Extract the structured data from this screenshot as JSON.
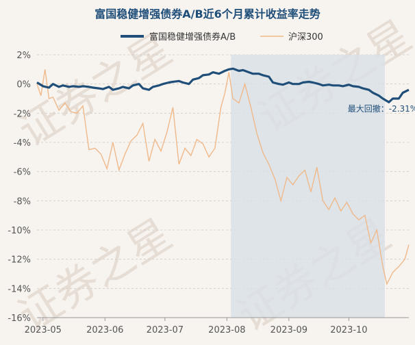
{
  "chart_data": {
    "type": "line",
    "title": "富国稳健增强债券A/B近6个月累计收益率走势",
    "legend": {
      "placement": "top",
      "entries": [
        "富国稳健增强债券A/B",
        "沪深300"
      ]
    },
    "x_ticks": [
      "2023-05",
      "2023-06",
      "2023-07",
      "2023-08",
      "2023-09",
      "2023-10"
    ],
    "y_ticks": [
      "2%",
      "0%",
      "-2%",
      "-4%",
      "-6%",
      "-8%",
      "-10%",
      "-12%",
      "-14%",
      "-16%"
    ],
    "ylim": [
      -16,
      2
    ],
    "xlim": [
      "2023-04-28",
      "2023-10-31"
    ],
    "grid": "horizontal dashed",
    "drawdown": {
      "start": "2023-08-03",
      "end": "2023-10-19",
      "label": "最大回撤：-2.31%"
    },
    "watermark": "证券之星",
    "colors": {
      "fund": "#1f4e79",
      "index": "#f0b98a",
      "shade": "#d9e0e6",
      "title": "#1f4e79"
    },
    "series": [
      {
        "name": "富国稳健增强债券A/B",
        "x": [
          "2023-04-28",
          "2023-05-01",
          "2023-05-04",
          "2023-05-06",
          "2023-05-09",
          "2023-05-11",
          "2023-05-14",
          "2023-05-16",
          "2023-05-19",
          "2023-05-21",
          "2023-05-24",
          "2023-05-26",
          "2023-05-29",
          "2023-05-31",
          "2023-06-03",
          "2023-06-05",
          "2023-06-08",
          "2023-06-10",
          "2023-06-13",
          "2023-06-15",
          "2023-06-18",
          "2023-06-20",
          "2023-06-23",
          "2023-06-25",
          "2023-06-28",
          "2023-06-30",
          "2023-07-03",
          "2023-07-05",
          "2023-07-08",
          "2023-07-10",
          "2023-07-13",
          "2023-07-15",
          "2023-07-18",
          "2023-07-20",
          "2023-07-23",
          "2023-07-25",
          "2023-07-28",
          "2023-07-31",
          "2023-08-02",
          "2023-08-04",
          "2023-08-07",
          "2023-08-09",
          "2023-08-12",
          "2023-08-14",
          "2023-08-17",
          "2023-08-19",
          "2023-08-22",
          "2023-08-24",
          "2023-08-27",
          "2023-08-29",
          "2023-09-01",
          "2023-09-03",
          "2023-09-06",
          "2023-09-08",
          "2023-09-11",
          "2023-09-13",
          "2023-09-16",
          "2023-09-18",
          "2023-09-21",
          "2023-09-23",
          "2023-09-26",
          "2023-09-28",
          "2023-10-01",
          "2023-10-03",
          "2023-10-06",
          "2023-10-08",
          "2023-10-11",
          "2023-10-13",
          "2023-10-16",
          "2023-10-18",
          "2023-10-21",
          "2023-10-23",
          "2023-10-26",
          "2023-10-28",
          "2023-10-31"
        ],
        "y": [
          0.1,
          -0.15,
          -0.25,
          0.0,
          -0.2,
          -0.1,
          -0.2,
          -0.15,
          -0.2,
          -0.15,
          -0.2,
          -0.25,
          -0.3,
          -0.35,
          -0.2,
          -0.4,
          -0.3,
          -0.2,
          -0.3,
          -0.1,
          0.0,
          -0.3,
          -0.4,
          -0.2,
          -0.1,
          0.0,
          0.1,
          0.15,
          0.2,
          0.1,
          0.0,
          0.3,
          0.4,
          0.6,
          0.65,
          0.8,
          0.7,
          0.9,
          1.0,
          1.05,
          0.9,
          0.95,
          0.8,
          0.7,
          0.7,
          0.6,
          0.5,
          0.1,
          0.0,
          -0.05,
          0.1,
          0.0,
          0.0,
          0.1,
          0.15,
          0.1,
          0.0,
          -0.1,
          -0.05,
          -0.1,
          -0.1,
          -0.15,
          -0.05,
          -0.15,
          -0.2,
          -0.3,
          -0.4,
          -0.6,
          -0.8,
          -1.0,
          -1.25,
          -1.0,
          -1.0,
          -0.6,
          -0.4
        ]
      },
      {
        "name": "沪深300",
        "x": [
          "2023-04-28",
          "2023-04-30",
          "2023-05-02",
          "2023-05-04",
          "2023-05-06",
          "2023-05-09",
          "2023-05-12",
          "2023-05-15",
          "2023-05-18",
          "2023-05-21",
          "2023-05-24",
          "2023-05-27",
          "2023-05-30",
          "2023-06-02",
          "2023-06-05",
          "2023-06-08",
          "2023-06-11",
          "2023-06-14",
          "2023-06-17",
          "2023-06-20",
          "2023-06-23",
          "2023-06-26",
          "2023-06-29",
          "2023-07-02",
          "2023-07-05",
          "2023-07-08",
          "2023-07-11",
          "2023-07-14",
          "2023-07-17",
          "2023-07-20",
          "2023-07-23",
          "2023-07-26",
          "2023-07-29",
          "2023-07-31",
          "2023-08-02",
          "2023-08-04",
          "2023-08-07",
          "2023-08-10",
          "2023-08-13",
          "2023-08-16",
          "2023-08-19",
          "2023-08-22",
          "2023-08-25",
          "2023-08-28",
          "2023-08-31",
          "2023-09-03",
          "2023-09-06",
          "2023-09-09",
          "2023-09-12",
          "2023-09-15",
          "2023-09-18",
          "2023-09-21",
          "2023-09-24",
          "2023-09-27",
          "2023-09-30",
          "2023-10-03",
          "2023-10-06",
          "2023-10-09",
          "2023-10-12",
          "2023-10-15",
          "2023-10-18",
          "2023-10-20",
          "2023-10-23",
          "2023-10-26",
          "2023-10-29",
          "2023-10-31"
        ],
        "y": [
          0.0,
          -0.8,
          1.0,
          -1.0,
          -0.9,
          -1.8,
          -1.3,
          -1.9,
          -2.0,
          -1.5,
          -4.5,
          -4.4,
          -4.8,
          -5.8,
          -4.0,
          -5.9,
          -4.8,
          -3.9,
          -3.5,
          -2.7,
          -5.3,
          -3.8,
          -4.6,
          -3.3,
          -1.6,
          -5.5,
          -4.4,
          -4.9,
          -3.8,
          -4.1,
          -5.0,
          -4.4,
          -1.6,
          -0.6,
          0.8,
          -1.0,
          -1.3,
          0.0,
          -1.6,
          -3.4,
          -4.7,
          -5.5,
          -6.5,
          -8.0,
          -6.4,
          -6.9,
          -6.3,
          -5.9,
          -7.4,
          -5.7,
          -8.0,
          -8.6,
          -7.8,
          -8.7,
          -8.1,
          -8.9,
          -9.3,
          -9.0,
          -10.9,
          -10.0,
          -12.5,
          -13.7,
          -12.9,
          -12.5,
          -12.0,
          -11.0
        ]
      }
    ]
  }
}
